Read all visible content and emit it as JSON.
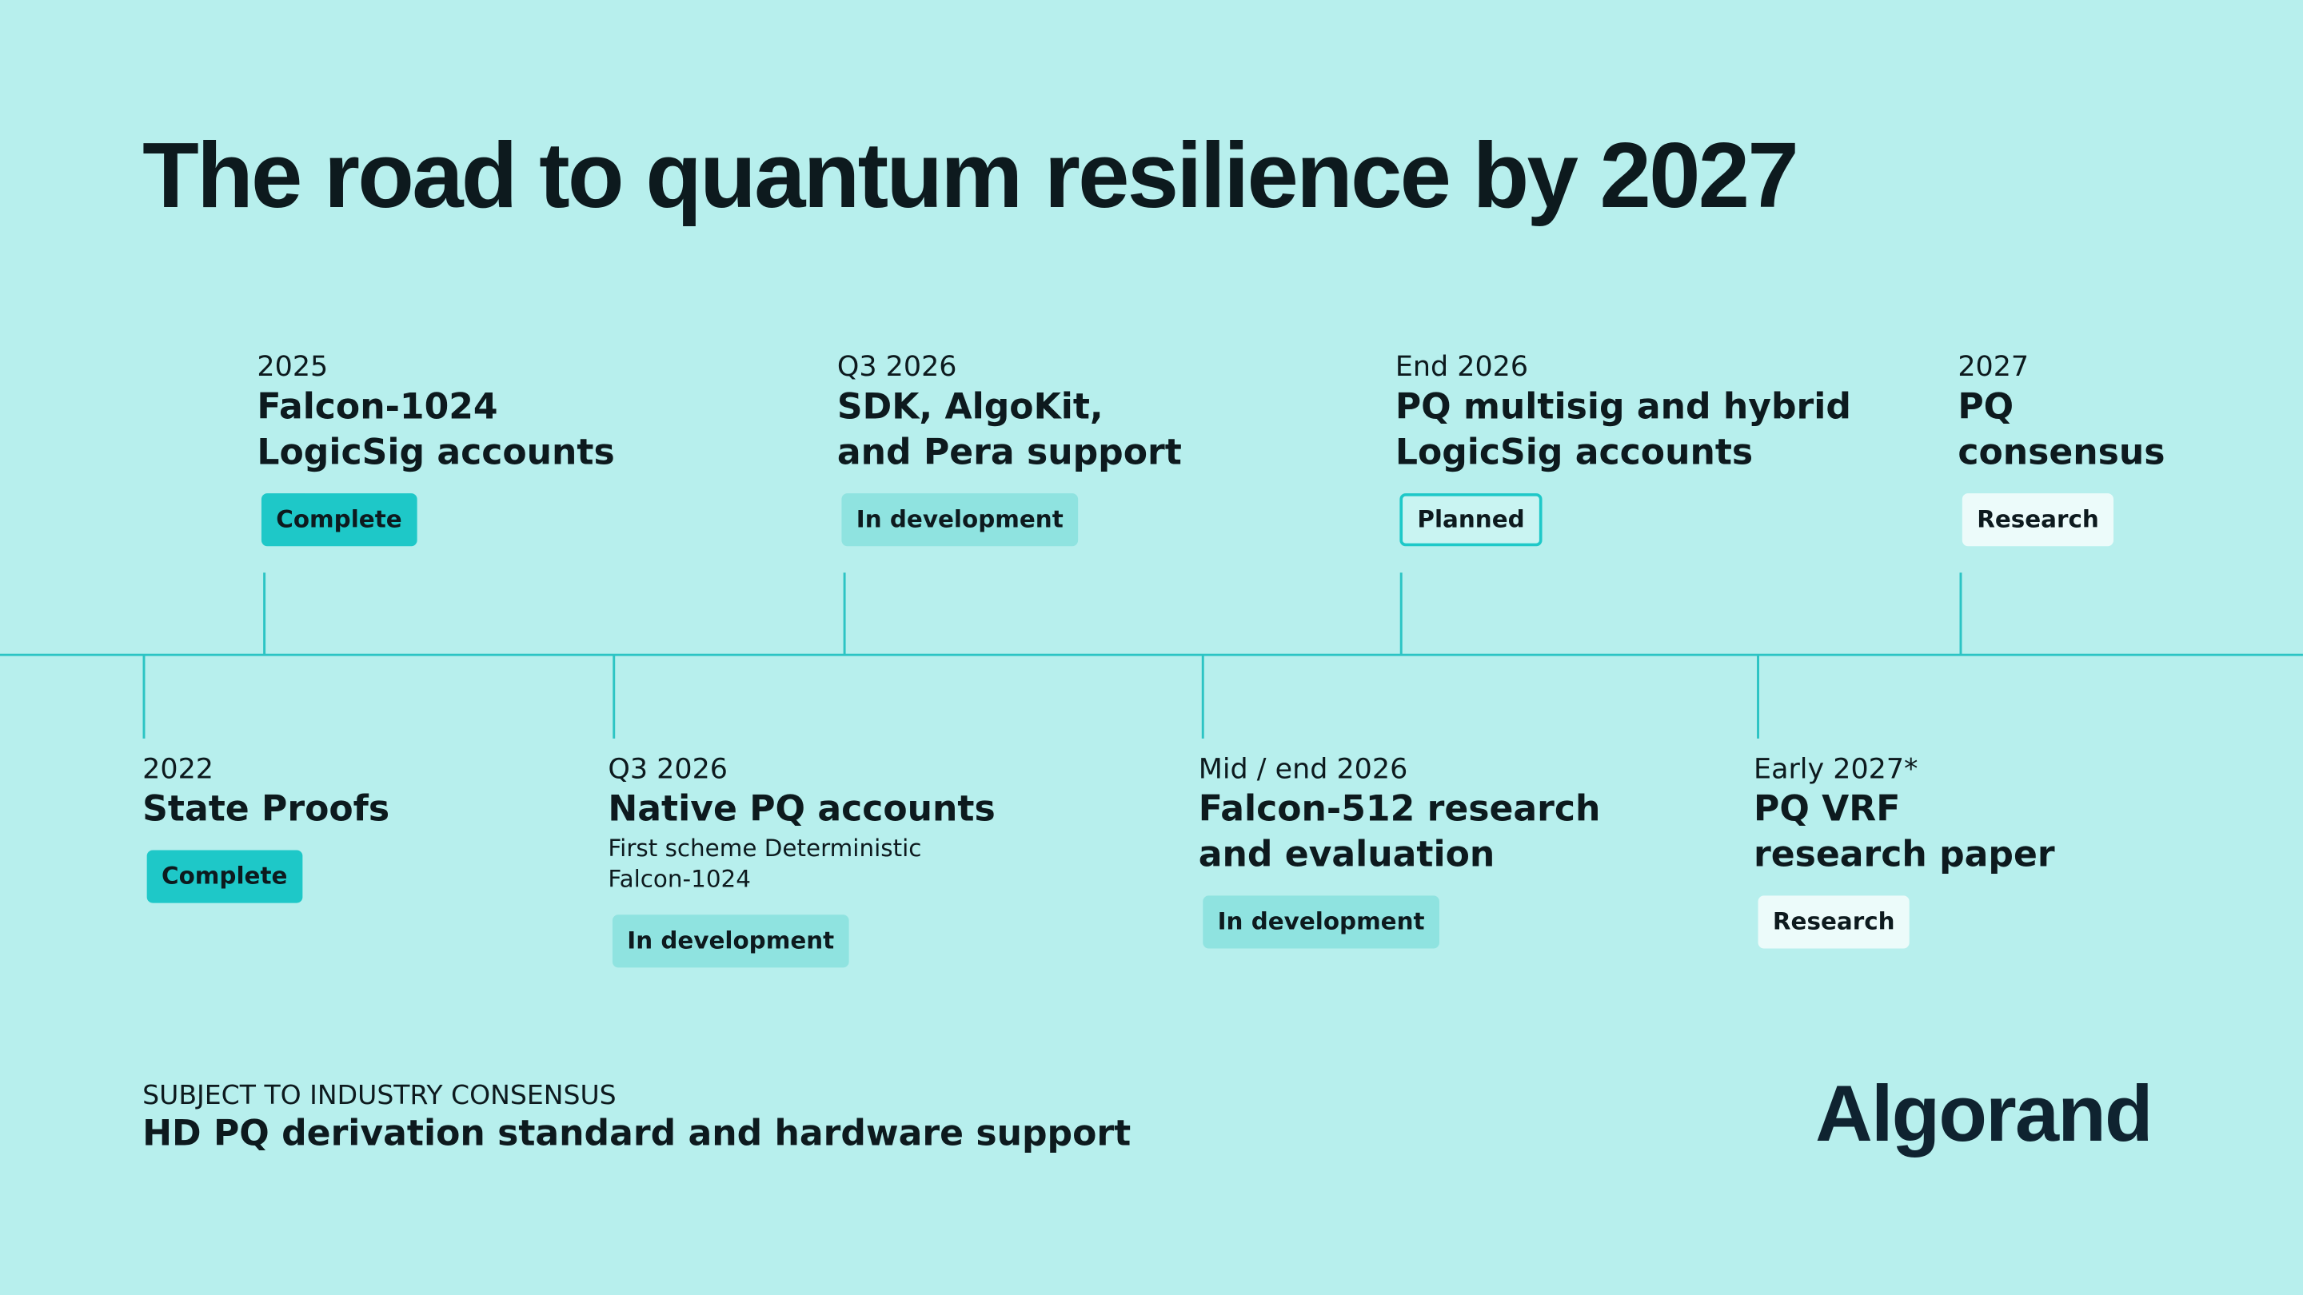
{
  "title": "The road to quantum resilience by 2027",
  "milestones_top": [
    {
      "date": "2025",
      "title": [
        "Falcon-1024",
        "LogicSig accounts"
      ],
      "status": "Complete"
    },
    {
      "date": "Q3 2026",
      "title": [
        "SDK, AlgoKit,",
        "and Pera support"
      ],
      "status": "In development"
    },
    {
      "date": "End 2026",
      "title": [
        "PQ multisig and hybrid",
        "LogicSig accounts"
      ],
      "status": "Planned"
    },
    {
      "date": "2027",
      "title": [
        "PQ",
        "consensus"
      ],
      "status": "Research"
    }
  ],
  "milestones_bottom": [
    {
      "date": "2022",
      "title": [
        "State Proofs"
      ],
      "status": "Complete"
    },
    {
      "date": "Q3 2026",
      "title": [
        "Native PQ accounts"
      ],
      "note": [
        "First scheme Deterministic",
        "Falcon-1024"
      ],
      "status": "In development"
    },
    {
      "date": "Mid / end 2026",
      "title": [
        "Falcon-512 research",
        "and evaluation"
      ],
      "status": "In development"
    },
    {
      "date": "Early 2027*",
      "title": [
        "PQ VRF",
        "research paper"
      ],
      "status": "Research"
    }
  ],
  "footer": {
    "label": "SUBJECT TO INDUSTRY CONSENSUS",
    "text": "HD PQ derivation standard and hardware support"
  },
  "logo": "Algorand"
}
